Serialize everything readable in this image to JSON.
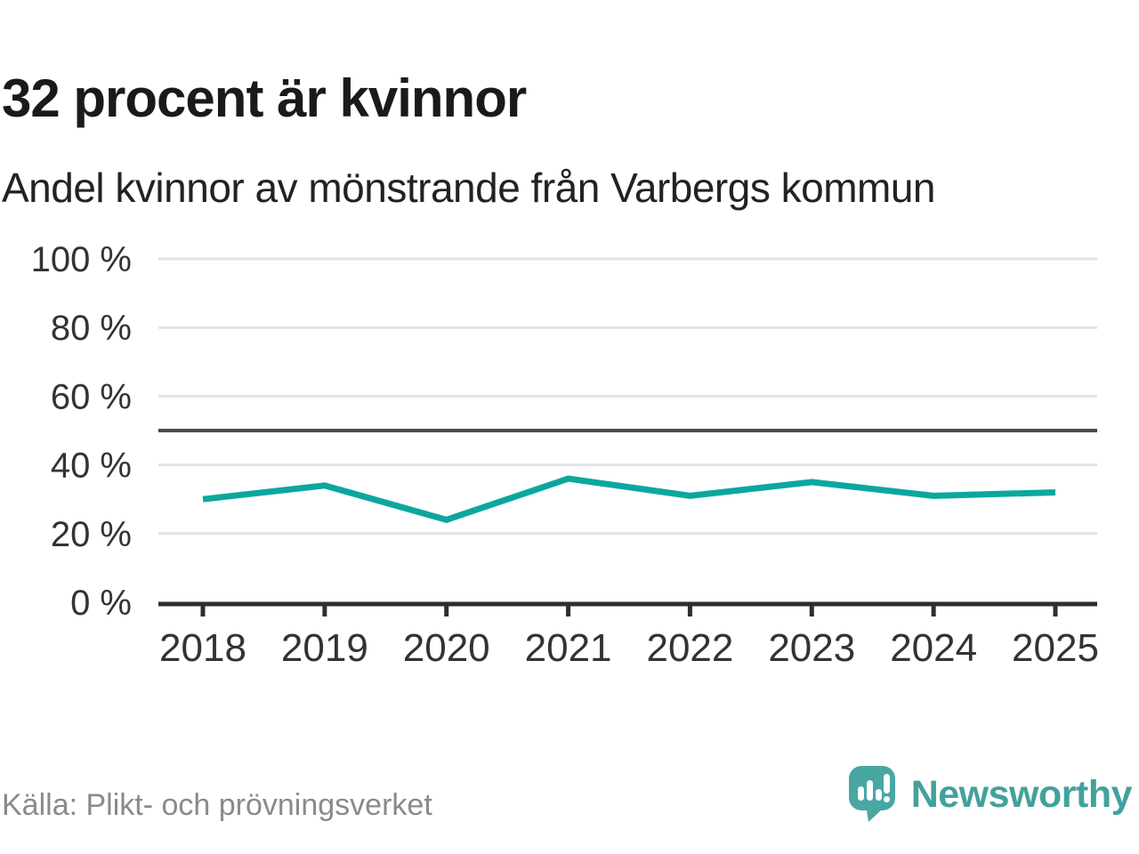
{
  "header": {
    "title": "32 procent är kvinnor",
    "subtitle": "Andel kvinnor av mönstrande från Varbergs kommun"
  },
  "chart_data": {
    "type": "line",
    "title": "32 procent är kvinnor",
    "subtitle": "Andel kvinnor av mönstrande från Varbergs kommun",
    "categories": [
      "2018",
      "2019",
      "2020",
      "2021",
      "2022",
      "2023",
      "2024",
      "2025"
    ],
    "series": [
      {
        "name": "Andel kvinnor av mönstrande",
        "values": [
          30,
          34,
          24,
          36,
          31,
          35,
          31,
          32
        ]
      }
    ],
    "unit": "%",
    "ylim": [
      0,
      100
    ],
    "yticks": [
      0,
      20,
      40,
      60,
      80,
      100
    ],
    "ytick_labels": [
      "0 %",
      "20 %",
      "40 %",
      "60 %",
      "80 %",
      "100 %"
    ],
    "reference_line": {
      "value": 50
    },
    "grid": true,
    "legend": "none",
    "line_color": "#0ba79e"
  },
  "footer": {
    "source": "Källa: Plikt- och prövningsverket",
    "logo_text": "Newsworthy"
  },
  "colors": {
    "accent_line": "#0ba79e",
    "logo_teal": "#49a7a2",
    "logo_text_teal": "#43a19c",
    "grid": "#e2e2e2",
    "reference_line": "#4a4a4a",
    "axis": "#2e2e2e",
    "tick_label": "#333333",
    "title_text": "#1a1a1a",
    "source_text": "#8a8a8a"
  }
}
